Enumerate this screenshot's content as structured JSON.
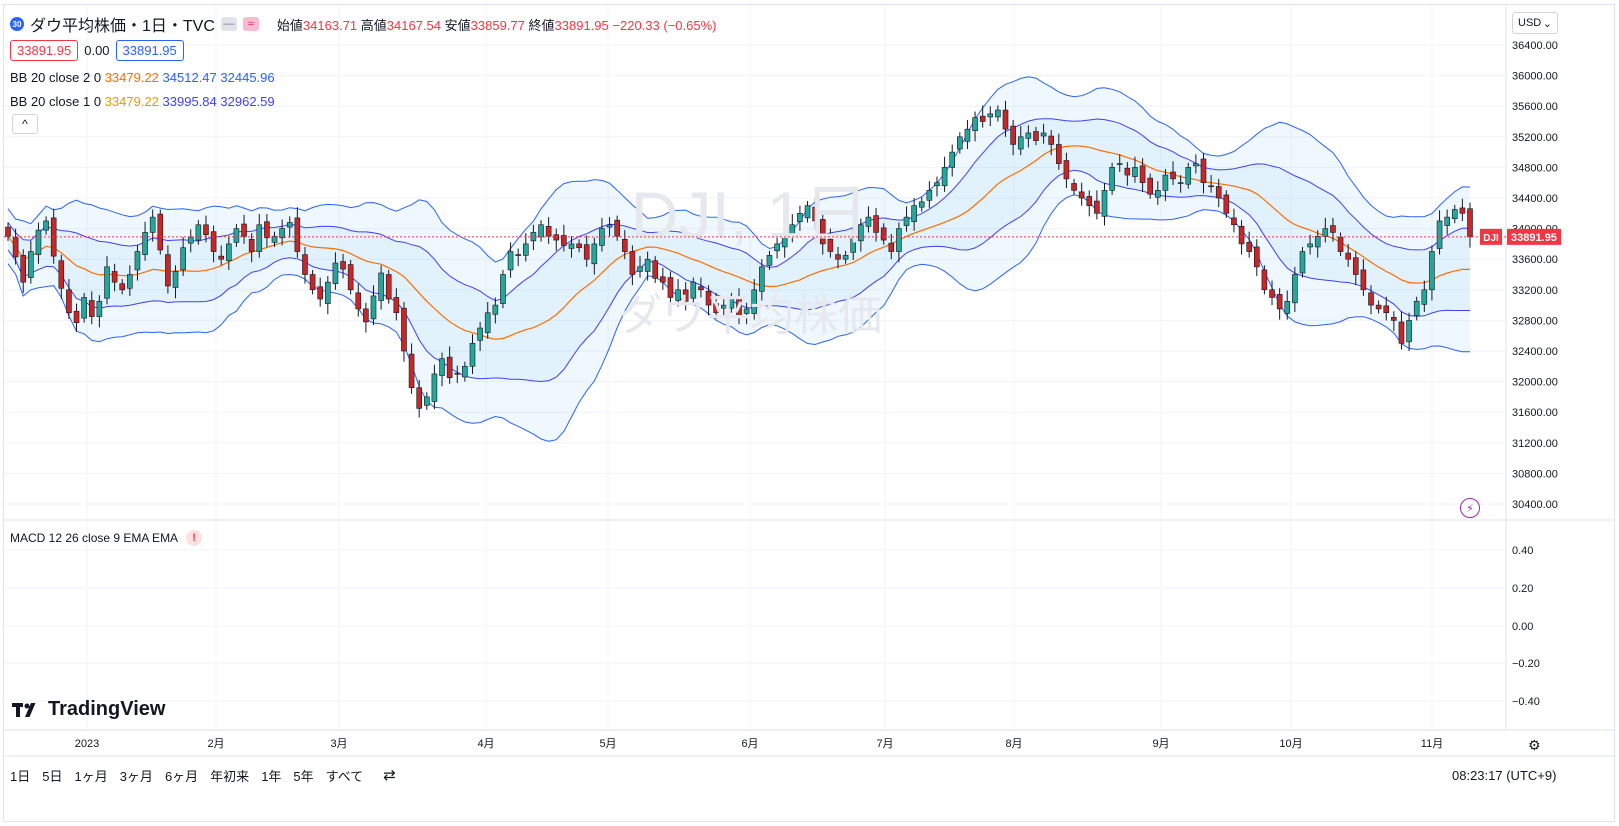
{
  "symbol": {
    "badge": "30",
    "title": "ダウ平均株価・1日・TVC",
    "pill_a": "—",
    "pill_b": "≈"
  },
  "ohlc": {
    "open_label": "始値",
    "open": "34163.71",
    "high_label": "高値",
    "high": "34167.54",
    "low_label": "安値",
    "low": "33859.77",
    "close_label": "終値",
    "close": "33891.95",
    "change": "−220.33 (−0.65%)"
  },
  "price_boxes": {
    "bid": "33891.95",
    "spread": "0.00",
    "ask": "33891.95"
  },
  "indicators": {
    "bb2": {
      "label": "BB 20 close 2 0",
      "mid": "33479.22",
      "upper": "34512.47",
      "lower": "32445.96"
    },
    "bb1": {
      "label": "BB 20 close 1 0",
      "mid": "33479.22",
      "upper": "33995.84",
      "lower": "32962.59"
    },
    "collapse": "^",
    "macd": {
      "label": "MACD 12 26 close 9 EMA EMA",
      "warn": "!"
    }
  },
  "currency": {
    "label": "USD",
    "chevron": "⌄"
  },
  "last_price": {
    "symbol": "DJI",
    "value": "33891.95"
  },
  "watermark": {
    "line1": "DJI, 1日",
    "line2": "ダウ平均株価"
  },
  "bolt_icon": "⚡",
  "logo": {
    "name": "TradingView"
  },
  "timeframes": [
    "1日",
    "5日",
    "1ヶ月",
    "3ヶ月",
    "6ヶ月",
    "年初来",
    "1年",
    "5年",
    "すべて"
  ],
  "compare_icon": "⇄",
  "clock": "08:23:17 (UTC+9)",
  "gear_icon": "⚙",
  "colors": {
    "up": "#26a69a",
    "down": "#c62828",
    "mid": "#ff6d00",
    "band": "#2962ff",
    "fill": "rgba(33,150,243,0.08)"
  },
  "chart_data": {
    "type": "candlestick",
    "price_axis": {
      "min": 30400,
      "max": 36400,
      "ticks": [
        "36400.00",
        "36000.00",
        "35600.00",
        "35200.00",
        "34800.00",
        "34400.00",
        "34000.00",
        "33600.00",
        "33200.00",
        "32800.00",
        "32400.00",
        "32000.00",
        "31600.00",
        "31200.00",
        "30800.00",
        "30400.00"
      ]
    },
    "macd_axis": {
      "ticks": [
        "0.40",
        "0.20",
        "0.00",
        "−0.20",
        "−0.40"
      ]
    },
    "x_ticks": [
      "2023",
      "2月",
      "3月",
      "4月",
      "5月",
      "6月",
      "7月",
      "8月",
      "9月",
      "10月",
      "11月"
    ],
    "close": [
      33900,
      33630,
      33300,
      33700,
      33980,
      34100,
      33640,
      33220,
      32900,
      32770,
      33100,
      32850,
      33050,
      33500,
      33300,
      33200,
      33400,
      33700,
      33950,
      34150,
      33720,
      33250,
      33440,
      33750,
      33890,
      34050,
      33920,
      33700,
      33600,
      33800,
      34000,
      33900,
      33700,
      34050,
      33880,
      33900,
      34000,
      34080,
      33700,
      33400,
      33200,
      33080,
      33300,
      33550,
      33470,
      33200,
      32950,
      32780,
      33120,
      33420,
      33080,
      32900,
      32400,
      31920,
      31650,
      31800,
      32100,
      32300,
      32050,
      32100,
      32200,
      32500,
      32700,
      32900,
      33000,
      33400,
      33700,
      33650,
      33800,
      33950,
      34050,
      33900,
      33850,
      33780,
      33800,
      33750,
      33600,
      33800,
      34000,
      34050,
      33900,
      33700,
      33400,
      33500,
      33600,
      33350,
      33300,
      33100,
      33200,
      33050,
      33300,
      33200,
      33000,
      32900,
      33000,
      33100,
      32850,
      32950,
      33200,
      33500,
      33650,
      33800,
      33900,
      34050,
      34200,
      34300,
      34100,
      33800,
      33700,
      33600,
      33650,
      33900,
      34050,
      34150,
      33950,
      33850,
      33700,
      34000,
      34150,
      34300,
      34350,
      34500,
      34600,
      34800,
      35000,
      35200,
      35300,
      35450,
      35400,
      35500,
      35550,
      35300,
      35100,
      35200,
      35250,
      35150,
      35250,
      35100,
      34850,
      34650,
      34500,
      34400,
      34300,
      34200,
      34500,
      34800,
      34850,
      34700,
      34800,
      34600,
      34450,
      34500,
      34700,
      34650,
      34600,
      34800,
      34850,
      34600,
      34550,
      34400,
      34200,
      34050,
      33800,
      33700,
      33500,
      33200,
      33100,
      32950,
      33050,
      33400,
      33700,
      33800,
      33900,
      34000,
      33950,
      33700,
      33600,
      33400,
      33200,
      33000,
      32950,
      32900,
      32800,
      32500,
      32800,
      33050,
      33200,
      33700,
      34100,
      34150,
      34250,
      34200,
      33891.95
    ],
    "bb2": {
      "upper_last": 34512.47,
      "mid_last": 33479.22,
      "lower_last": 32445.96
    },
    "bb1": {
      "upper_last": 33995.84,
      "mid_last": 33479.22,
      "lower_last": 32962.59
    }
  }
}
